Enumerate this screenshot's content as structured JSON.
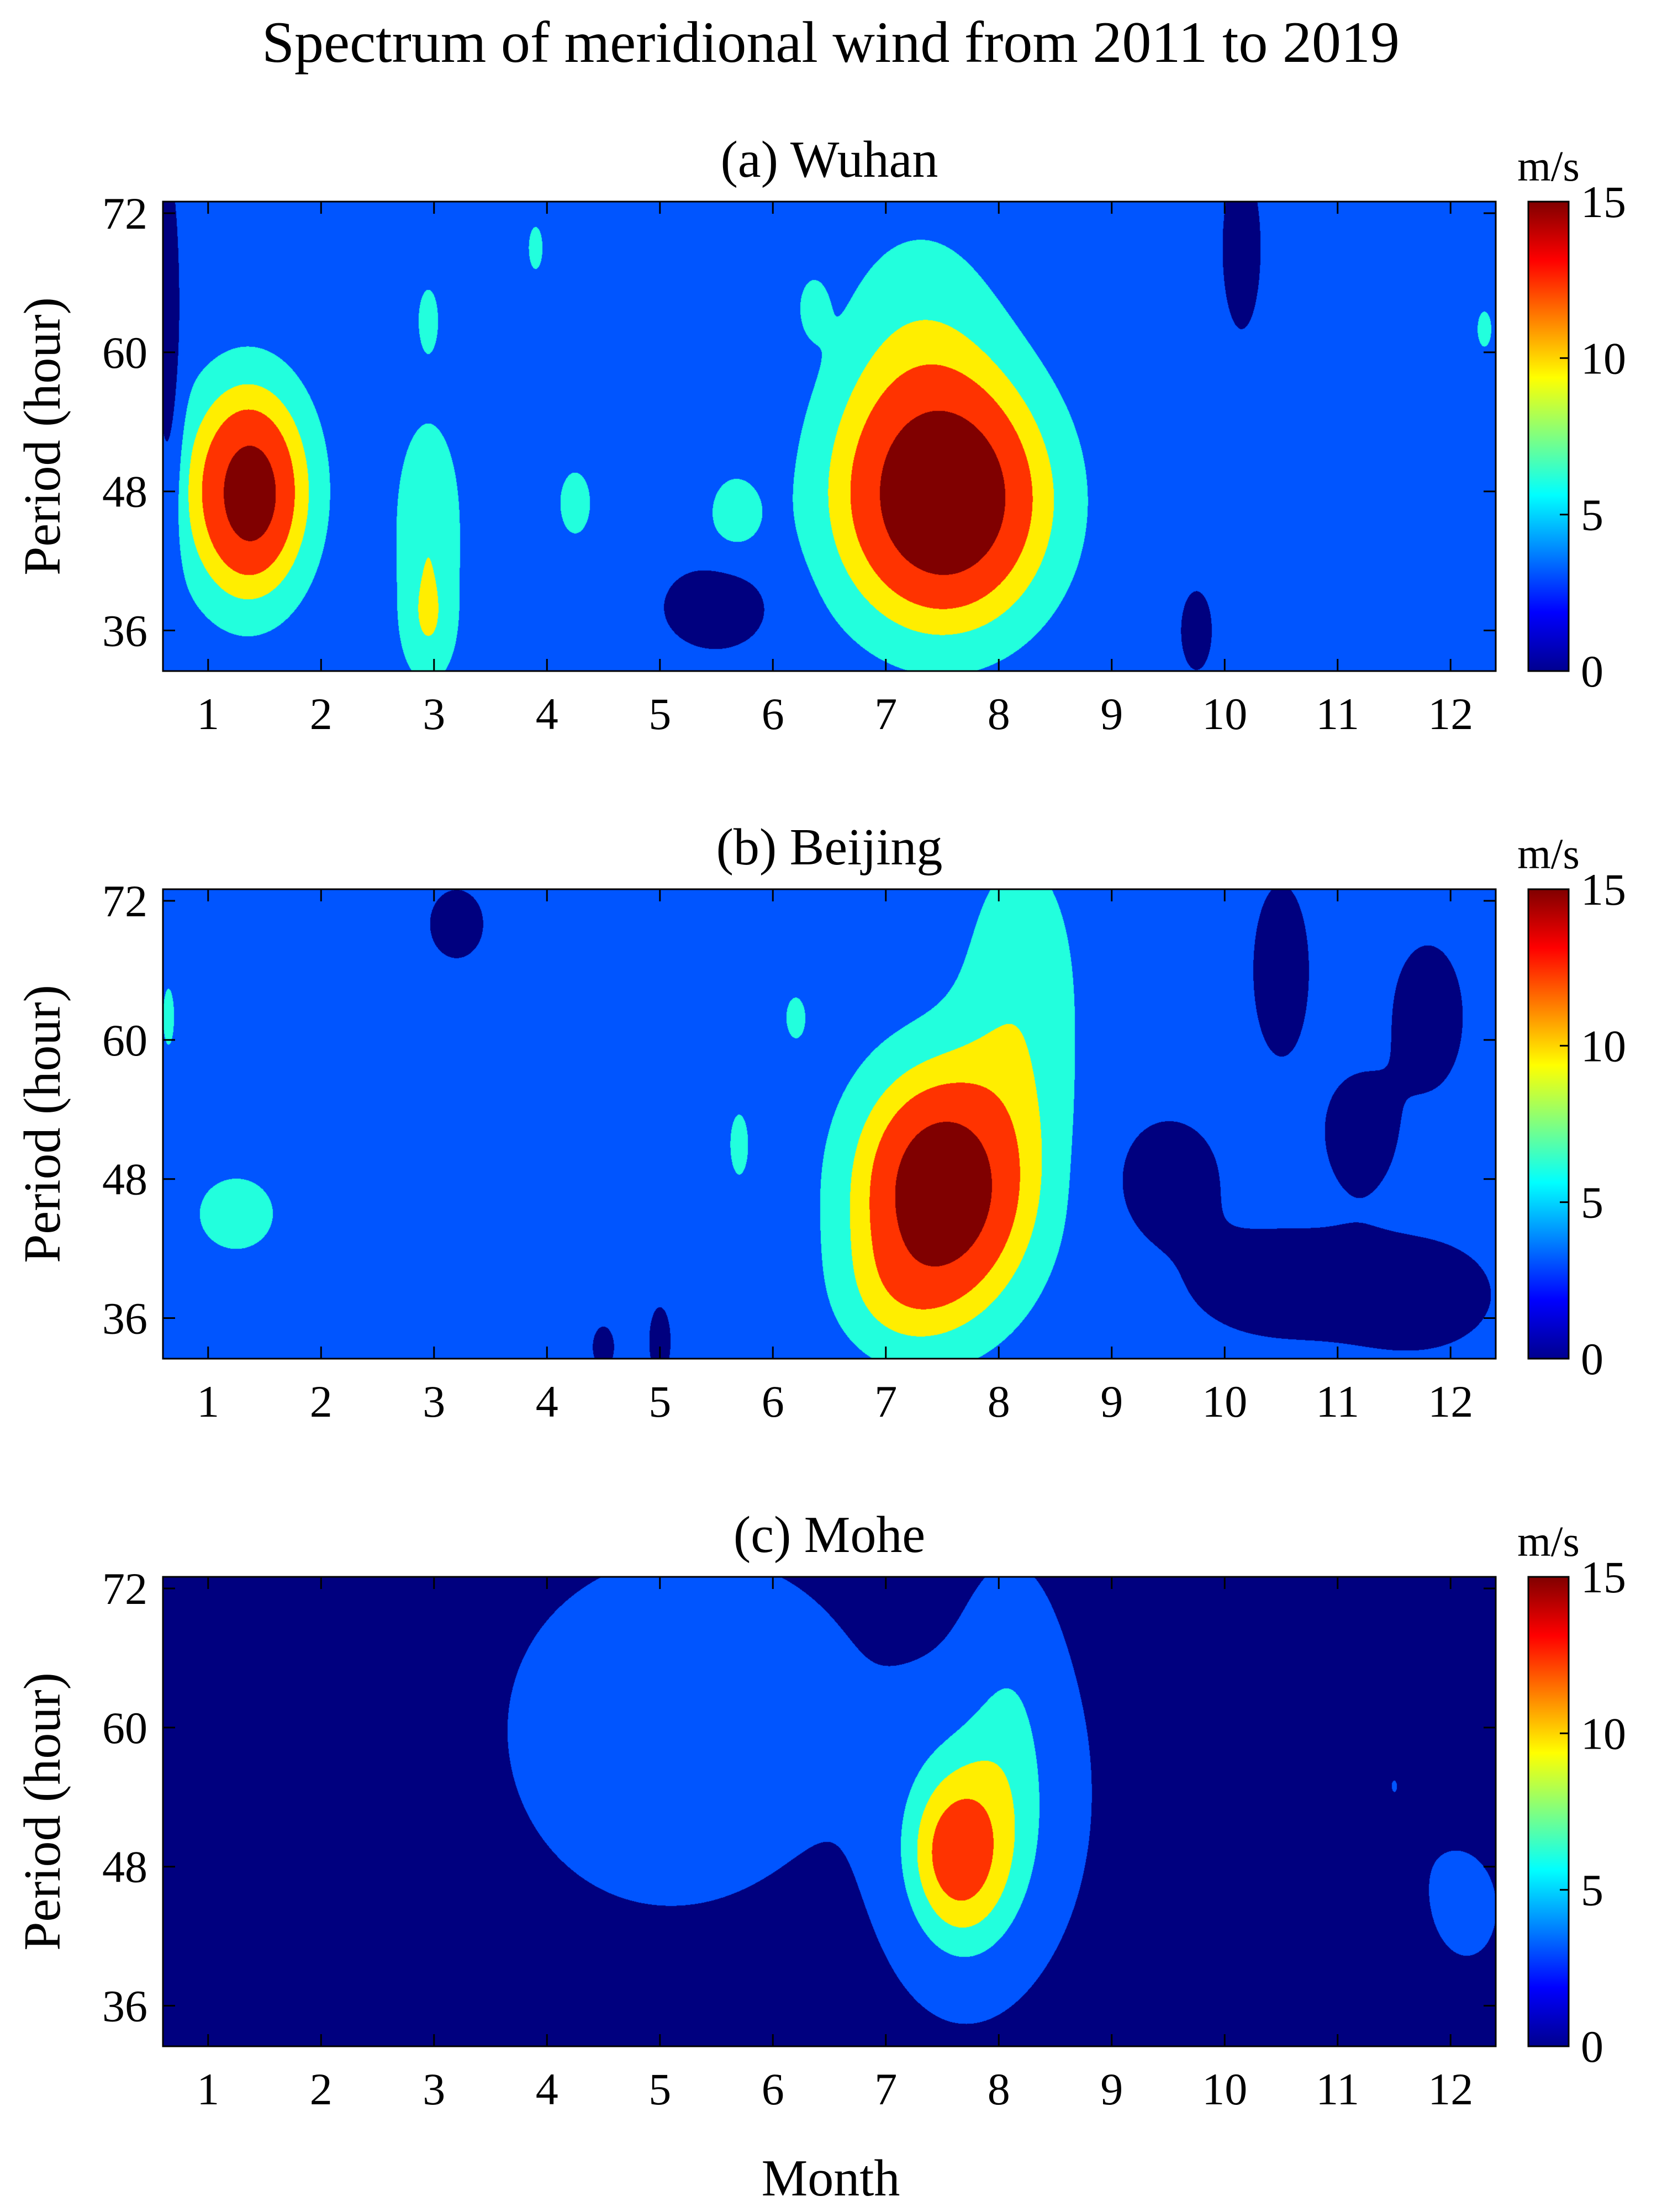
{
  "title": "Spectrum of meridional wind from 2011 to 2019",
  "colormap": {
    "name": "jet",
    "stops": [
      "#00008f",
      "#0000ff",
      "#0080ff",
      "#00ffff",
      "#80ff80",
      "#ffff00",
      "#ff8000",
      "#ff0000",
      "#800000"
    ],
    "levels": [
      3,
      6,
      8,
      10,
      12,
      13.5
    ],
    "colors": [
      "#00007f",
      "#0055ff",
      "#22ffdd",
      "#ffee00",
      "#ff3300",
      "#ff3300",
      "#800000"
    ]
  },
  "chart_data": [
    {
      "type": "heatmap",
      "title": "(a) Wuhan",
      "xlabel": "",
      "ylabel": "Period (hour)",
      "colorbar_label": "m/s",
      "xlim": [
        0.6,
        12.4
      ],
      "ylim": [
        32.5,
        73
      ],
      "xticks": [
        "1",
        "2",
        "3",
        "4",
        "5",
        "6",
        "7",
        "8",
        "9",
        "10",
        "11",
        "12"
      ],
      "yticks": [
        "36",
        "48",
        "60",
        "72"
      ],
      "colorbar_range": [
        0,
        15
      ],
      "colorbar_ticks": [
        "0",
        "5",
        "10",
        "15"
      ],
      "background": 4.5,
      "features": [
        {
          "x": 1.35,
          "y": 48,
          "sx": 0.38,
          "sy": 6.5,
          "amp": 9.5
        },
        {
          "x": 1.4,
          "y": 47.5,
          "sx": 0.18,
          "sy": 3.5,
          "amp": 2.5
        },
        {
          "x": 7.5,
          "y": 47,
          "sx": 0.65,
          "sy": 7.5,
          "amp": 10.5
        },
        {
          "x": 7.55,
          "y": 47.5,
          "sx": 0.35,
          "sy": 4.5,
          "amp": 4.0
        },
        {
          "x": 7.3,
          "y": 60,
          "sx": 0.55,
          "sy": 9.0,
          "amp": 2.5
        },
        {
          "x": 2.95,
          "y": 45,
          "sx": 0.22,
          "sy": 7.0,
          "amp": 3.3
        },
        {
          "x": 2.95,
          "y": 36,
          "sx": 0.18,
          "sy": 3.5,
          "amp": 2.2
        },
        {
          "x": 2.95,
          "y": 63,
          "sx": 0.1,
          "sy": 3.0,
          "amp": 2.0
        },
        {
          "x": 4.25,
          "y": 47,
          "sx": 0.15,
          "sy": 3.0,
          "amp": 2.2
        },
        {
          "x": 5.65,
          "y": 46,
          "sx": 0.2,
          "sy": 3.0,
          "amp": 2.2
        },
        {
          "x": 3.9,
          "y": 69,
          "sx": 0.1,
          "sy": 3.0,
          "amp": 1.8
        },
        {
          "x": 6.35,
          "y": 64,
          "sx": 0.1,
          "sy": 2.0,
          "amp": 1.8
        },
        {
          "x": 12.3,
          "y": 62,
          "sx": 0.1,
          "sy": 2.5,
          "amp": 1.8
        },
        {
          "x": 5.5,
          "y": 38,
          "sx": 0.32,
          "sy": 2.5,
          "amp": -4.3
        },
        {
          "x": 10.15,
          "y": 69,
          "sx": 0.12,
          "sy": 5.0,
          "amp": -4.0
        },
        {
          "x": 9.75,
          "y": 36,
          "sx": 0.1,
          "sy": 2.5,
          "amp": -3.8
        },
        {
          "x": 0.65,
          "y": 60,
          "sx": 0.08,
          "sy": 12.0,
          "amp": -3.5
        }
      ]
    },
    {
      "type": "heatmap",
      "title": "(b) Beijing",
      "xlabel": "",
      "ylabel": "Period (hour)",
      "colorbar_label": "m/s",
      "xlim": [
        0.6,
        12.4
      ],
      "ylim": [
        32.5,
        73
      ],
      "xticks": [
        "1",
        "2",
        "3",
        "4",
        "5",
        "6",
        "7",
        "8",
        "9",
        "10",
        "11",
        "12"
      ],
      "yticks": [
        "36",
        "48",
        "60",
        "72"
      ],
      "colorbar_range": [
        0,
        15
      ],
      "colorbar_ticks": [
        "0",
        "5",
        "10",
        "15"
      ],
      "background": 4.5,
      "features": [
        {
          "x": 7.5,
          "y": 47,
          "sx": 0.55,
          "sy": 7.5,
          "amp": 10.0
        },
        {
          "x": 7.5,
          "y": 47,
          "sx": 0.28,
          "sy": 4.0,
          "amp": 4.0
        },
        {
          "x": 8.2,
          "y": 64,
          "sx": 0.4,
          "sy": 10.0,
          "amp": 2.8
        },
        {
          "x": 7.1,
          "y": 38,
          "sx": 0.4,
          "sy": 4.0,
          "amp": 2.0
        },
        {
          "x": 1.25,
          "y": 45,
          "sx": 0.32,
          "sy": 3.0,
          "amp": 2.5
        },
        {
          "x": 6.2,
          "y": 62,
          "sx": 0.12,
          "sy": 2.5,
          "amp": 1.8
        },
        {
          "x": 5.7,
          "y": 51,
          "sx": 0.12,
          "sy": 4.0,
          "amp": 1.8
        },
        {
          "x": 0.65,
          "y": 62,
          "sx": 0.08,
          "sy": 4.0,
          "amp": 1.8
        },
        {
          "x": 10.5,
          "y": 39,
          "sx": 0.6,
          "sy": 3.5,
          "amp": -3.5
        },
        {
          "x": 11.7,
          "y": 38,
          "sx": 0.5,
          "sy": 3.5,
          "amp": -3.5
        },
        {
          "x": 9.5,
          "y": 48,
          "sx": 0.35,
          "sy": 4.0,
          "amp": -3.3
        },
        {
          "x": 11.2,
          "y": 52,
          "sx": 0.25,
          "sy": 4.0,
          "amp": -3.2
        },
        {
          "x": 11.8,
          "y": 62,
          "sx": 0.25,
          "sy": 5.0,
          "amp": -3.2
        },
        {
          "x": 10.5,
          "y": 66,
          "sx": 0.2,
          "sy": 6.0,
          "amp": -3.2
        },
        {
          "x": 3.2,
          "y": 70,
          "sx": 0.2,
          "sy": 2.5,
          "amp": -3.0
        },
        {
          "x": 5.0,
          "y": 34,
          "sx": 0.08,
          "sy": 2.5,
          "amp": -3.0
        },
        {
          "x": 4.5,
          "y": 33.5,
          "sx": 0.08,
          "sy": 1.5,
          "amp": -3.0
        }
      ]
    },
    {
      "type": "heatmap",
      "title": "(c) Mohe",
      "xlabel": "Month",
      "ylabel": "Period (hour)",
      "colorbar_label": "m/s",
      "xlim": [
        0.6,
        12.4
      ],
      "ylim": [
        32.5,
        73
      ],
      "xticks": [
        "1",
        "2",
        "3",
        "4",
        "5",
        "6",
        "7",
        "8",
        "9",
        "10",
        "11",
        "12"
      ],
      "yticks": [
        "36",
        "48",
        "60",
        "72"
      ],
      "colorbar_range": [
        0,
        15
      ],
      "colorbar_ticks": [
        "0",
        "5",
        "10",
        "15"
      ],
      "background": 1.5,
      "features": [
        {
          "x": 5.3,
          "y": 62,
          "sx": 1.4,
          "sy": 12.0,
          "amp": 2.6
        },
        {
          "x": 5.0,
          "y": 54,
          "sx": 0.8,
          "sy": 8.0,
          "amp": 1.2
        },
        {
          "x": 8.5,
          "y": 55,
          "sx": 0.4,
          "sy": 10.0,
          "amp": 1.5
        },
        {
          "x": 7.7,
          "y": 49,
          "sx": 0.45,
          "sy": 8.0,
          "amp": 7.5
        },
        {
          "x": 7.6,
          "y": 49,
          "sx": 0.25,
          "sy": 4.0,
          "amp": 2.5
        },
        {
          "x": 8.1,
          "y": 64,
          "sx": 0.3,
          "sy": 8.0,
          "amp": 2.5
        },
        {
          "x": 11.5,
          "y": 55,
          "sx": 0.7,
          "sy": 15.0,
          "amp": 1.5
        },
        {
          "x": 12.2,
          "y": 44,
          "sx": 0.25,
          "sy": 4.0,
          "amp": 1.4
        },
        {
          "x": 1.2,
          "y": 50,
          "sx": 0.3,
          "sy": 5.0,
          "amp": 1.3
        }
      ]
    }
  ]
}
